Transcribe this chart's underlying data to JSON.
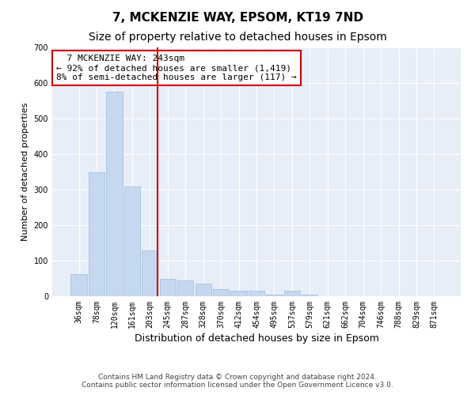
{
  "title": "7, MCKENZIE WAY, EPSOM, KT19 7ND",
  "subtitle": "Size of property relative to detached houses in Epsom",
  "xlabel": "Distribution of detached houses by size in Epsom",
  "ylabel": "Number of detached properties",
  "bar_color": "#c5d8ef",
  "bar_edge_color": "#9bbcd8",
  "background_color": "#e8eef8",
  "grid_color": "#ffffff",
  "categories": [
    "36sqm",
    "78sqm",
    "120sqm",
    "161sqm",
    "203sqm",
    "245sqm",
    "287sqm",
    "328sqm",
    "370sqm",
    "412sqm",
    "454sqm",
    "495sqm",
    "537sqm",
    "579sqm",
    "621sqm",
    "662sqm",
    "704sqm",
    "746sqm",
    "788sqm",
    "829sqm",
    "871sqm"
  ],
  "values": [
    63,
    350,
    575,
    310,
    130,
    50,
    45,
    35,
    20,
    15,
    15,
    5,
    15,
    5,
    0,
    0,
    0,
    0,
    0,
    0,
    0
  ],
  "property_line_color": "#cc0000",
  "property_bin_index": 5,
  "annotation_text": "  7 MCKENZIE WAY: 243sqm\n← 92% of detached houses are smaller (1,419)\n8% of semi-detached houses are larger (117) →",
  "annotation_box_color": "#ffffff",
  "annotation_box_edge": "#cc0000",
  "ylim": [
    0,
    700
  ],
  "yticks": [
    0,
    100,
    200,
    300,
    400,
    500,
    600,
    700
  ],
  "footer_text": "Contains HM Land Registry data © Crown copyright and database right 2024.\nContains public sector information licensed under the Open Government Licence v3.0.",
  "title_fontsize": 11,
  "subtitle_fontsize": 10,
  "xlabel_fontsize": 9,
  "ylabel_fontsize": 8,
  "tick_fontsize": 7,
  "annotation_fontsize": 8,
  "footer_fontsize": 6.5
}
